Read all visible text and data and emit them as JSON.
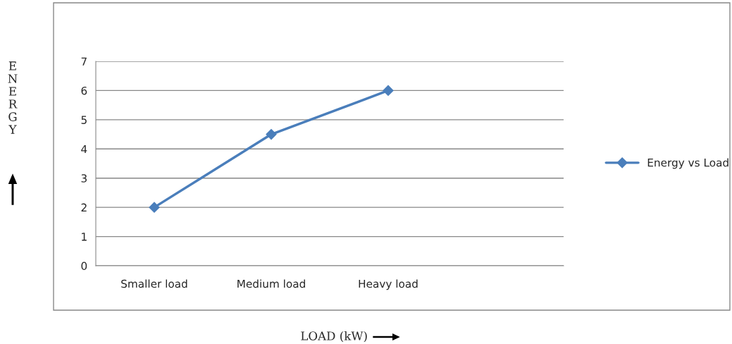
{
  "chart_data": {
    "type": "line",
    "xlabel": "LOAD (kW)",
    "annotations": [
      "ENERGY"
    ],
    "categories": [
      "Smaller load",
      "Medium load",
      "Heavy load",
      null
    ],
    "series": [
      {
        "name": "Energy vs Load",
        "color": "#4a7ebb",
        "values": [
          2,
          4.5,
          6,
          null
        ]
      }
    ],
    "ylim": [
      0,
      7
    ],
    "yticks": [
      0,
      1,
      2,
      3,
      4,
      5,
      6,
      7
    ],
    "grid": "y",
    "legend": "right",
    "marker": "diamond",
    "line_style": "solid"
  }
}
